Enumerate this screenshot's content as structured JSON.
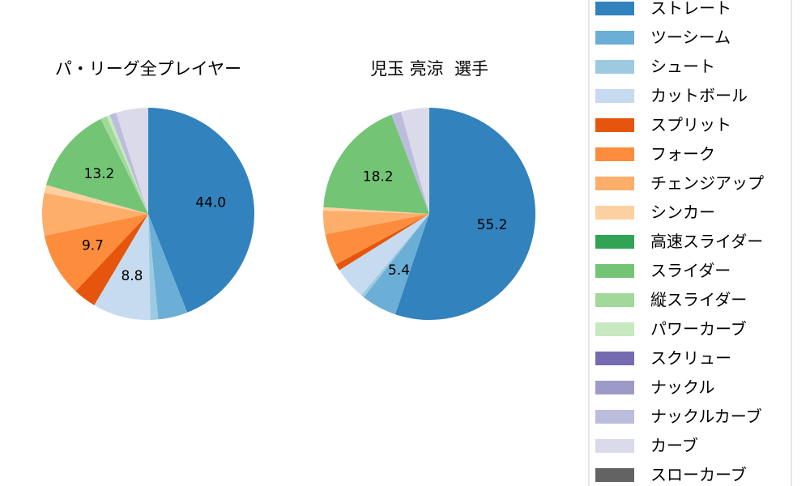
{
  "chart_data": [
    {
      "type": "pie",
      "title": "パ・リーグ全プレイヤー",
      "start_angle_deg": 90,
      "direction": "clockwise",
      "categories": [
        "ストレート",
        "ツーシーム",
        "シュート",
        "カットボール",
        "スプリット",
        "フォーク",
        "チェンジアップ",
        "シンカー",
        "高速スライダー",
        "スライダー",
        "縦スライダー",
        "パワーカーブ",
        "スクリュー",
        "ナックル",
        "ナックルカーブ",
        "カーブ",
        "スローカーブ"
      ],
      "values": [
        44.0,
        4.5,
        1.2,
        8.8,
        3.5,
        9.7,
        6.5,
        1.2,
        0,
        13.2,
        1.0,
        0.5,
        0,
        0,
        1.0,
        4.9,
        0
      ],
      "labels": [
        "44.0",
        "",
        "",
        "8.8",
        "",
        "9.7",
        "",
        "",
        "",
        "13.2",
        "",
        "",
        "",
        "",
        "",
        "",
        ""
      ]
    },
    {
      "type": "pie",
      "title": "児玉 亮涼  選手",
      "start_angle_deg": 90,
      "direction": "clockwise",
      "categories": [
        "ストレート",
        "ツーシーム",
        "シュート",
        "カットボール",
        "スプリット",
        "フォーク",
        "チェンジアップ",
        "シンカー",
        "高速スライダー",
        "スライダー",
        "縦スライダー",
        "パワーカーブ",
        "スクリュー",
        "ナックル",
        "ナックルカーブ",
        "カーブ",
        "スローカーブ"
      ],
      "values": [
        55.2,
        5.4,
        0.5,
        5.0,
        1.0,
        4.8,
        3.6,
        0.5,
        0,
        18.2,
        0,
        0,
        0,
        0,
        1.5,
        4.3,
        0
      ],
      "labels": [
        "55.2",
        "5.4",
        "",
        "",
        "",
        "",
        "",
        "",
        "",
        "18.2",
        "",
        "",
        "",
        "",
        "",
        "",
        ""
      ]
    }
  ],
  "legend": {
    "placement": "right",
    "entries": [
      "ストレート",
      "ツーシーム",
      "シュート",
      "カットボール",
      "スプリット",
      "フォーク",
      "チェンジアップ",
      "シンカー",
      "高速スライダー",
      "スライダー",
      "縦スライダー",
      "パワーカーブ",
      "スクリュー",
      "ナックル",
      "ナックルカーブ",
      "カーブ",
      "スローカーブ"
    ],
    "colors": [
      "#3182bd",
      "#6baed6",
      "#9ecae1",
      "#c6dbef",
      "#e6550d",
      "#fd8d3c",
      "#fdae6b",
      "#fdd0a2",
      "#31a354",
      "#74c476",
      "#a1d99b",
      "#c7e9c0",
      "#756bb1",
      "#9e9ac8",
      "#bcbddc",
      "#dadaeb",
      "#636363"
    ]
  }
}
